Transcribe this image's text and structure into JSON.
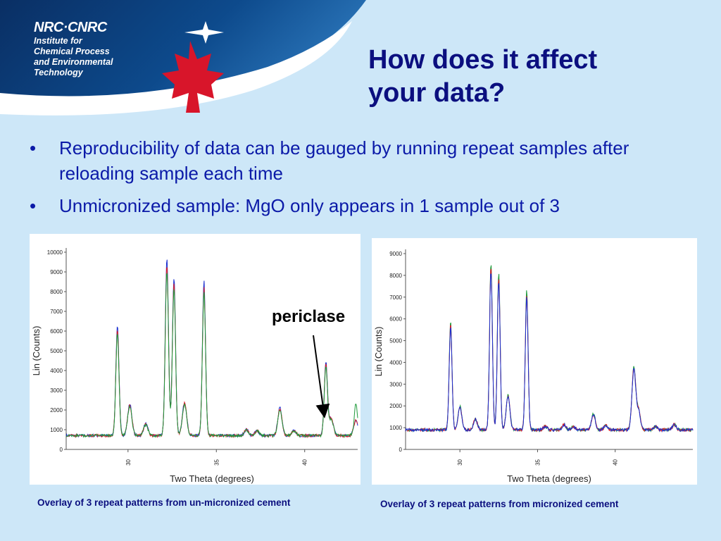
{
  "header": {
    "org_logo": "NRC·CNRC",
    "org_lines": [
      "Institute for",
      "Chemical Process",
      "and Environmental",
      "Technology"
    ]
  },
  "slide": {
    "title_line1": "How does it affect",
    "title_line2": "your data?",
    "bullets": [
      "Reproducibility of data can be gauged by running repeat samples after reloading sample each time",
      "Unmicronized sample: MgO only appears in 1 sample out of 3"
    ],
    "annotation": "periclase",
    "caption_left": "Overlay of 3 repeat patterns from un-micronized cement",
    "caption_right": "Overlay of 3 repeat patterns from micronized cement"
  },
  "colors": {
    "title": "#0b0f7f",
    "bullet": "#0b1aa8",
    "background": "#cde7f8",
    "banner": "#0a3d7a",
    "maple": "#d8152a"
  },
  "chart_data": [
    {
      "type": "line",
      "xlabel": "Two Theta (degrees)",
      "ylabel": "Lin (Counts)",
      "xlim": [
        26.5,
        43
      ],
      "ylim": [
        0,
        10000
      ],
      "xticks": [
        30,
        35,
        40
      ],
      "yticks": [
        0,
        1000,
        2000,
        3000,
        4000,
        5000,
        6000,
        7000,
        8000,
        9000,
        10000
      ],
      "baseline": 700,
      "peaks": [
        [
          29.4,
          5600
        ],
        [
          30.1,
          1600
        ],
        [
          31.0,
          600
        ],
        [
          32.2,
          9000
        ],
        [
          32.6,
          8000
        ],
        [
          33.2,
          1700
        ],
        [
          34.3,
          7800
        ],
        [
          36.7,
          300
        ],
        [
          37.3,
          250
        ],
        [
          38.6,
          1400
        ],
        [
          39.4,
          250
        ],
        [
          41.2,
          3700
        ],
        [
          41.5,
          900
        ],
        [
          42.9,
          800
        ]
      ],
      "series": [
        {
          "color": "#1a2fd0",
          "scale": 1.0,
          "periclase": false
        },
        {
          "color": "#d81e2a",
          "scale": 0.96,
          "periclase": false
        },
        {
          "color": "#1e9a3a",
          "scale": 0.93,
          "periclase": true
        }
      ]
    },
    {
      "type": "line",
      "xlabel": "Two Theta (degrees)",
      "ylabel": "Lin (Counts)",
      "xlim": [
        26.5,
        45
      ],
      "ylim": [
        0,
        9000
      ],
      "xticks": [
        30,
        35,
        40
      ],
      "yticks": [
        0,
        1000,
        2000,
        3000,
        4000,
        5000,
        6000,
        7000,
        8000,
        9000
      ],
      "baseline": 900,
      "peaks": [
        [
          29.4,
          5000
        ],
        [
          30.0,
          1100
        ],
        [
          31.0,
          500
        ],
        [
          32.0,
          7700
        ],
        [
          32.5,
          7200
        ],
        [
          33.1,
          1600
        ],
        [
          34.3,
          6400
        ],
        [
          35.5,
          150
        ],
        [
          36.7,
          250
        ],
        [
          37.3,
          150
        ],
        [
          38.6,
          750
        ],
        [
          39.4,
          200
        ],
        [
          41.2,
          2900
        ],
        [
          41.5,
          900
        ],
        [
          42.6,
          150
        ],
        [
          43.8,
          250
        ]
      ],
      "series": [
        {
          "color": "#1e9a3a",
          "scale": 1.0,
          "periclase": false
        },
        {
          "color": "#d81e2a",
          "scale": 0.97,
          "periclase": false
        },
        {
          "color": "#1a2fd0",
          "scale": 0.95,
          "periclase": false
        }
      ]
    }
  ]
}
